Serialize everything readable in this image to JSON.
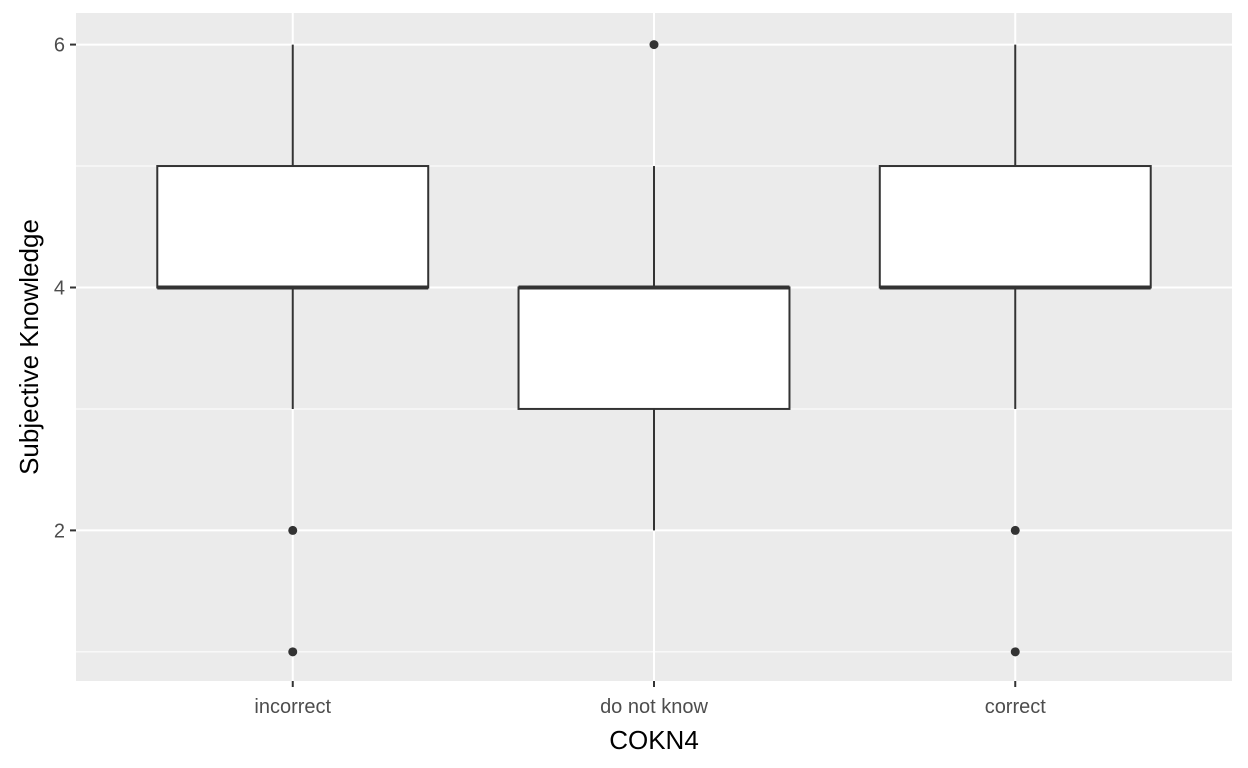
{
  "chart_data": {
    "type": "boxplot",
    "title": "",
    "xlabel": "COKN4",
    "ylabel": "Subjective Knowledge",
    "categories": [
      "incorrect",
      "do not know",
      "correct"
    ],
    "ylim": [
      0.76,
      6.26
    ],
    "y_ticks": [
      2,
      4,
      6
    ],
    "y_tick_labels": [
      "2",
      "4",
      "6"
    ],
    "grid": true,
    "legend": "none",
    "boxes": [
      {
        "category": "incorrect",
        "whisker_low": 3,
        "q1": 4,
        "median": 4,
        "q3": 5,
        "whisker_high": 6,
        "outliers": [
          2,
          1
        ]
      },
      {
        "category": "do not know",
        "whisker_low": 2,
        "q1": 3,
        "median": 4,
        "q3": 4,
        "whisker_high": 5,
        "outliers": [
          6
        ]
      },
      {
        "category": "correct",
        "whisker_low": 3,
        "q1": 4,
        "median": 4,
        "q3": 5,
        "whisker_high": 6,
        "outliers": [
          2,
          1
        ]
      }
    ],
    "colors": {
      "panel_background": "#ebebeb",
      "grid_major": "#ffffff",
      "grid_minor": "#ffffff",
      "box_fill": "#ffffff",
      "box_stroke": "#333333",
      "tick_text": "#4d4d4d",
      "axis_title": "#000000"
    }
  }
}
